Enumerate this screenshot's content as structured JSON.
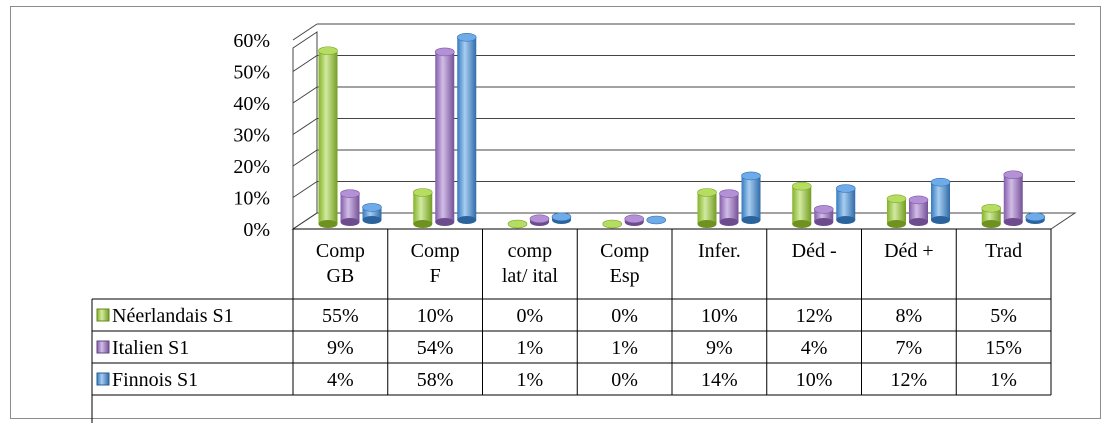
{
  "chart_data": {
    "type": "bar",
    "style": "3d-cylinder",
    "categories": [
      [
        "Comp",
        "GB"
      ],
      [
        "Comp",
        "F"
      ],
      [
        "comp",
        "lat/ ital"
      ],
      [
        "Comp",
        "Esp"
      ],
      [
        "Infer."
      ],
      [
        "Déd -"
      ],
      [
        "Déd +"
      ],
      [
        "Trad"
      ]
    ],
    "ylim": [
      0,
      60
    ],
    "yticks": [
      "0%",
      "10%",
      "20%",
      "30%",
      "40%",
      "50%",
      "60%"
    ],
    "grid": true,
    "legend_placement": "data-table-left",
    "series": [
      {
        "name": "Néerlandais S1",
        "color": "#9BD12E",
        "values": [
          55,
          10,
          0,
          0,
          10,
          12,
          8,
          5
        ],
        "labels": [
          "55%",
          "10%",
          "0%",
          "0%",
          "10%",
          "12%",
          "8%",
          "5%"
        ]
      },
      {
        "name": "Italien S1",
        "color": "#9B6CC9",
        "values": [
          9,
          54,
          1,
          1,
          9,
          4,
          7,
          15
        ],
        "labels": [
          "9%",
          "54%",
          "1%",
          "1%",
          "9%",
          "4%",
          "7%",
          "15%"
        ]
      },
      {
        "name": "Finnois S1",
        "color": "#3E8FE0",
        "values": [
          4,
          58,
          1,
          0,
          14,
          10,
          12,
          1
        ],
        "labels": [
          "4%",
          "58%",
          "1%",
          "0%",
          "14%",
          "10%",
          "12%",
          "1%"
        ]
      }
    ]
  }
}
